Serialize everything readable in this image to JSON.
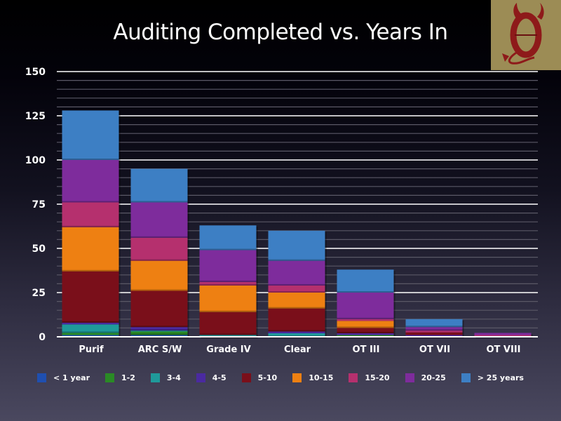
{
  "chart_data": {
    "type": "bar",
    "stacked": true,
    "title": "Auditing Completed vs. Years In",
    "xlabel": "",
    "ylabel": "",
    "ylim": [
      0,
      150
    ],
    "yticks": [
      0,
      25,
      50,
      75,
      100,
      125,
      150
    ],
    "minor_grid_step": 5,
    "grid": true,
    "legend_position": "bottom",
    "categories": [
      "Purif",
      "ARC S/W",
      "Grade IV",
      "Clear",
      "OT III",
      "OT VII",
      "OT VIII"
    ],
    "series": [
      {
        "name": "< 1 year",
        "color": "#1f4fb0",
        "values": [
          1,
          1,
          0,
          0,
          0,
          0,
          0
        ]
      },
      {
        "name": "1-2",
        "color": "#2a8a25",
        "values": [
          1.2,
          2,
          0,
          0,
          1,
          0,
          0
        ]
      },
      {
        "name": "3-4",
        "color": "#1f9a9a",
        "values": [
          4.8,
          0.5,
          1,
          2,
          0,
          0,
          0
        ]
      },
      {
        "name": "4-5",
        "color": "#4a2aa0",
        "values": [
          1,
          2,
          0,
          1,
          1,
          1,
          0
        ]
      },
      {
        "name": "5-10",
        "color": "#7a0f1a",
        "values": [
          29,
          20.5,
          13,
          13,
          3,
          1.5,
          0
        ]
      },
      {
        "name": "10-15",
        "color": "#ee8012",
        "values": [
          25,
          17,
          15,
          9,
          4,
          0,
          0
        ]
      },
      {
        "name": "15-20",
        "color": "#b5306e",
        "values": [
          14,
          13,
          2,
          4,
          1,
          1,
          1
        ]
      },
      {
        "name": "20-25",
        "color": "#7e2c9c",
        "values": [
          24,
          20,
          18,
          14,
          15,
          2,
          1.2
        ]
      },
      {
        "name": "> 25 years",
        "color": "#3d7fc4",
        "values": [
          28,
          19,
          14,
          17,
          13,
          4.5,
          0
        ]
      }
    ]
  },
  "logo": {
    "icon": "devil-theta-logo-icon",
    "background": "#9c8c55",
    "glyph": "Θ"
  }
}
